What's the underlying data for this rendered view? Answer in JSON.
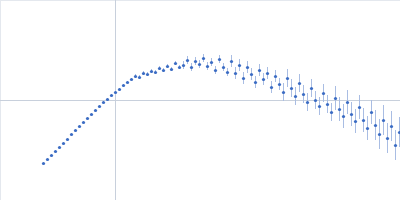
{
  "chart_data": {
    "type": "scatter",
    "color": "#3b6cc4",
    "tick_labels": false,
    "xlim": [
      0,
      400
    ],
    "ylim": [
      0,
      200
    ],
    "reference_lines": {
      "x": [
        115
      ],
      "y": [
        100
      ]
    },
    "x": [
      43,
      47,
      51,
      55,
      59,
      63,
      67,
      71,
      75,
      79,
      83,
      87,
      91,
      95,
      99,
      103,
      107,
      111,
      115,
      119,
      123,
      127,
      131,
      135,
      139,
      143,
      147,
      151,
      155,
      159,
      163,
      167,
      171,
      175,
      179,
      183,
      187,
      191,
      195,
      199,
      203,
      207,
      211,
      215,
      219,
      223,
      227,
      231,
      235,
      239,
      243,
      247,
      251,
      255,
      259,
      263,
      267,
      271,
      275,
      279,
      283,
      287,
      291,
      295,
      299,
      303,
      307,
      311,
      315,
      319,
      323,
      327,
      331,
      335,
      339,
      343,
      347,
      351,
      355,
      359,
      363,
      367,
      371,
      375,
      379,
      383,
      387,
      391,
      395,
      399
    ],
    "values": [
      37,
      41,
      45,
      49,
      53,
      57,
      61,
      66,
      70,
      74,
      78,
      82,
      86,
      90,
      94,
      98,
      101,
      105,
      108,
      111,
      115,
      118,
      121,
      124,
      123,
      127,
      126,
      129,
      128,
      132,
      130,
      134,
      131,
      137,
      133,
      135,
      140,
      133,
      139,
      136,
      142,
      134,
      138,
      130,
      141,
      133,
      128,
      139,
      127,
      135,
      122,
      133,
      126,
      118,
      130,
      121,
      127,
      113,
      124,
      116,
      108,
      122,
      112,
      104,
      117,
      106,
      98,
      112,
      100,
      94,
      107,
      96,
      88,
      102,
      91,
      84,
      98,
      86,
      79,
      93,
      80,
      72,
      88,
      75,
      66,
      80,
      62,
      74,
      55,
      68
    ],
    "errors": [
      0.5,
      0.5,
      0.5,
      0.5,
      0.5,
      0.5,
      0.5,
      0.5,
      0.5,
      0.5,
      0.5,
      0.5,
      0.5,
      0.5,
      0.5,
      1,
      1,
      1,
      1,
      1,
      1,
      1,
      1,
      2,
      2,
      2,
      2,
      2,
      2,
      2,
      2,
      2,
      2,
      2,
      2,
      4,
      4,
      4,
      4,
      4,
      4,
      4,
      4,
      4,
      4,
      4,
      4,
      6,
      6,
      6,
      6,
      6,
      6,
      6,
      6,
      6,
      6,
      6,
      6,
      6,
      9,
      9,
      9,
      9,
      9,
      9,
      9,
      9,
      9,
      9,
      9,
      9,
      9,
      12,
      12,
      12,
      12,
      12,
      12,
      12,
      12,
      12,
      12,
      15,
      15,
      15,
      15,
      15,
      15,
      15
    ]
  }
}
